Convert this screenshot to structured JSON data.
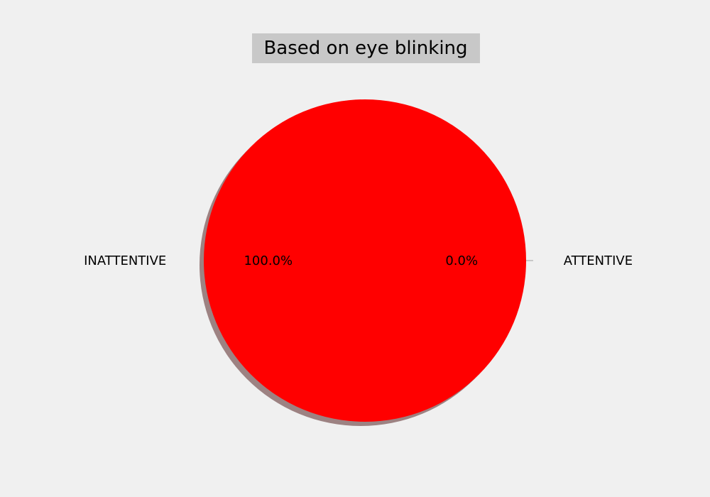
{
  "chart_data": {
    "type": "pie",
    "title": "Based on eye blinking",
    "slices": [
      {
        "label": "INATTENTIVE",
        "value": 100.0,
        "pct_label": "100.0%",
        "color": "#ff0000"
      },
      {
        "label": "ATTENTIVE",
        "value": 0.0,
        "pct_label": "0.0%",
        "color": "#a0a0a0"
      }
    ],
    "shadow": true,
    "background": "#f0f0f0",
    "title_background": "#c8c8c8"
  }
}
